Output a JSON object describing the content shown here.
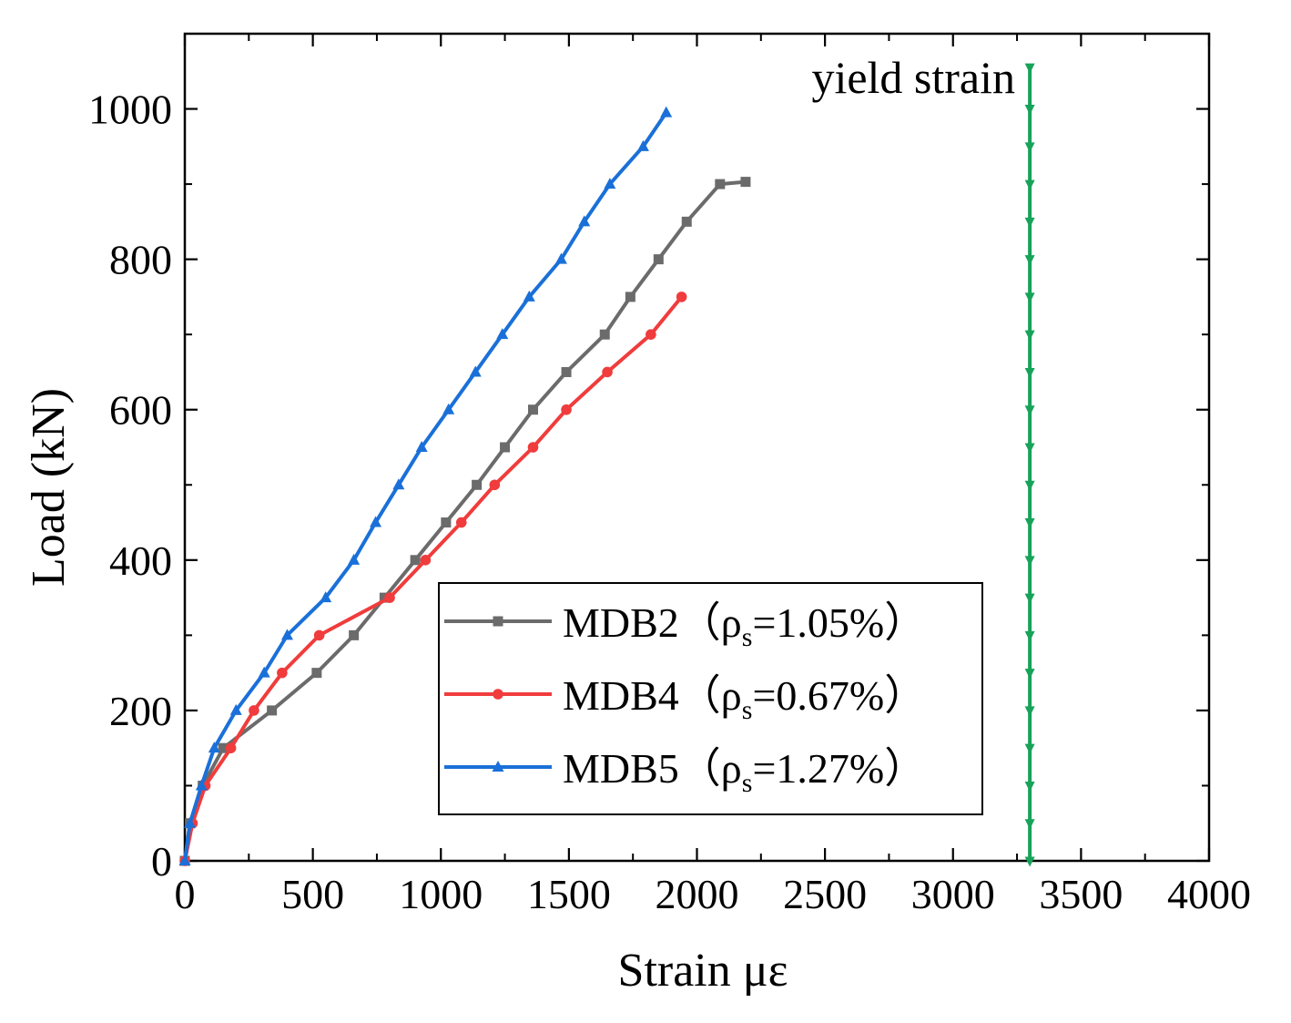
{
  "chart_data": {
    "type": "line",
    "title": "",
    "xlabel": "Strain  με",
    "ylabel": "Load (kN)",
    "xlim": [
      0,
      4000
    ],
    "ylim": [
      0,
      1100
    ],
    "x_ticks": [
      0,
      500,
      1000,
      1500,
      2000,
      2500,
      3000,
      3500,
      4000
    ],
    "y_ticks": [
      0,
      200,
      400,
      600,
      800,
      1000
    ],
    "grid": false,
    "legend_position": "center-right",
    "series": [
      {
        "name": "MDB2",
        "legend_prefix": "MDB2（ρ",
        "legend_sub": "s",
        "legend_suffix": "=1.05%）",
        "color": "#6b6b6b",
        "marker": "square",
        "x": [
          0,
          20,
          70,
          150,
          340,
          515,
          660,
          780,
          900,
          1020,
          1140,
          1250,
          1360,
          1490,
          1640,
          1740,
          1850,
          1960,
          2090,
          2190
        ],
        "y": [
          0,
          50,
          100,
          150,
          200,
          250,
          300,
          350,
          400,
          450,
          500,
          550,
          600,
          650,
          700,
          750,
          800,
          850,
          900,
          903
        ]
      },
      {
        "name": "MDB4",
        "legend_prefix": "MDB4（ρ",
        "legend_sub": "s",
        "legend_suffix": "=0.67%）",
        "color": "#f03c3c",
        "marker": "circle",
        "x": [
          0,
          30,
          80,
          180,
          270,
          380,
          525,
          800,
          940,
          1080,
          1210,
          1360,
          1490,
          1650,
          1820,
          1940
        ],
        "y": [
          0,
          50,
          100,
          150,
          200,
          250,
          300,
          350,
          400,
          450,
          500,
          550,
          600,
          650,
          700,
          750
        ]
      },
      {
        "name": "MDB5",
        "legend_prefix": "MDB5（ρ",
        "legend_sub": "s",
        "legend_suffix": "=1.27%）",
        "color": "#1a70d8",
        "marker": "triangle",
        "x": [
          0,
          20,
          65,
          115,
          200,
          310,
          400,
          550,
          660,
          745,
          835,
          925,
          1030,
          1135,
          1240,
          1345,
          1470,
          1560,
          1660,
          1790,
          1880
        ],
        "y": [
          0,
          50,
          100,
          150,
          200,
          250,
          300,
          350,
          400,
          450,
          500,
          550,
          600,
          650,
          700,
          750,
          800,
          850,
          900,
          950,
          995
        ]
      }
    ],
    "reference_line": {
      "label": "yield strain",
      "color": "#17a35a",
      "marker": "triangle-down",
      "x": 3300,
      "y_range": [
        0,
        1055
      ],
      "marker_y": [
        0,
        50,
        100,
        150,
        200,
        250,
        300,
        350,
        400,
        450,
        500,
        550,
        600,
        650,
        700,
        750,
        800,
        850,
        900,
        950,
        1000,
        1055
      ]
    }
  }
}
